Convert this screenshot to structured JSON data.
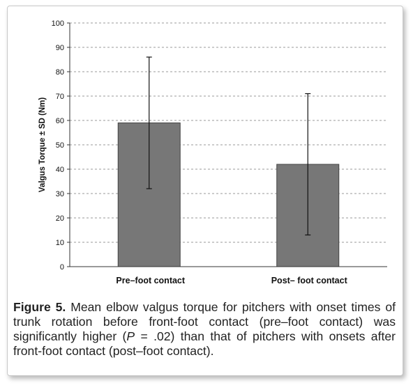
{
  "chart_data": {
    "type": "bar",
    "title": "",
    "xlabel": "",
    "ylabel": "Valgus Torque ± SD (Nm)",
    "ylim": [
      0,
      100
    ],
    "yticks": [
      0,
      10,
      20,
      30,
      40,
      50,
      60,
      70,
      80,
      90,
      100
    ],
    "grid": "dashed horizontal",
    "categories": [
      "Pre–foot contact",
      "Post– foot contact"
    ],
    "values": [
      59,
      42
    ],
    "error_low": [
      32,
      13
    ],
    "error_high": [
      86,
      71
    ],
    "colors": {
      "bar": "#777777",
      "bar_edge": "#444444",
      "grid": "#9a9a9a",
      "axis": "#333333"
    }
  },
  "caption": {
    "label": "Figure 5.",
    "text_a": " Mean elbow valgus torque for pitchers with onset times of trunk rotation before front-foot contact (pre–foot contact) was significantly higher (",
    "p_symbol": "P",
    "text_b": " = .02) than that of pitchers with onsets after front-foot contact (post–foot contact)."
  }
}
